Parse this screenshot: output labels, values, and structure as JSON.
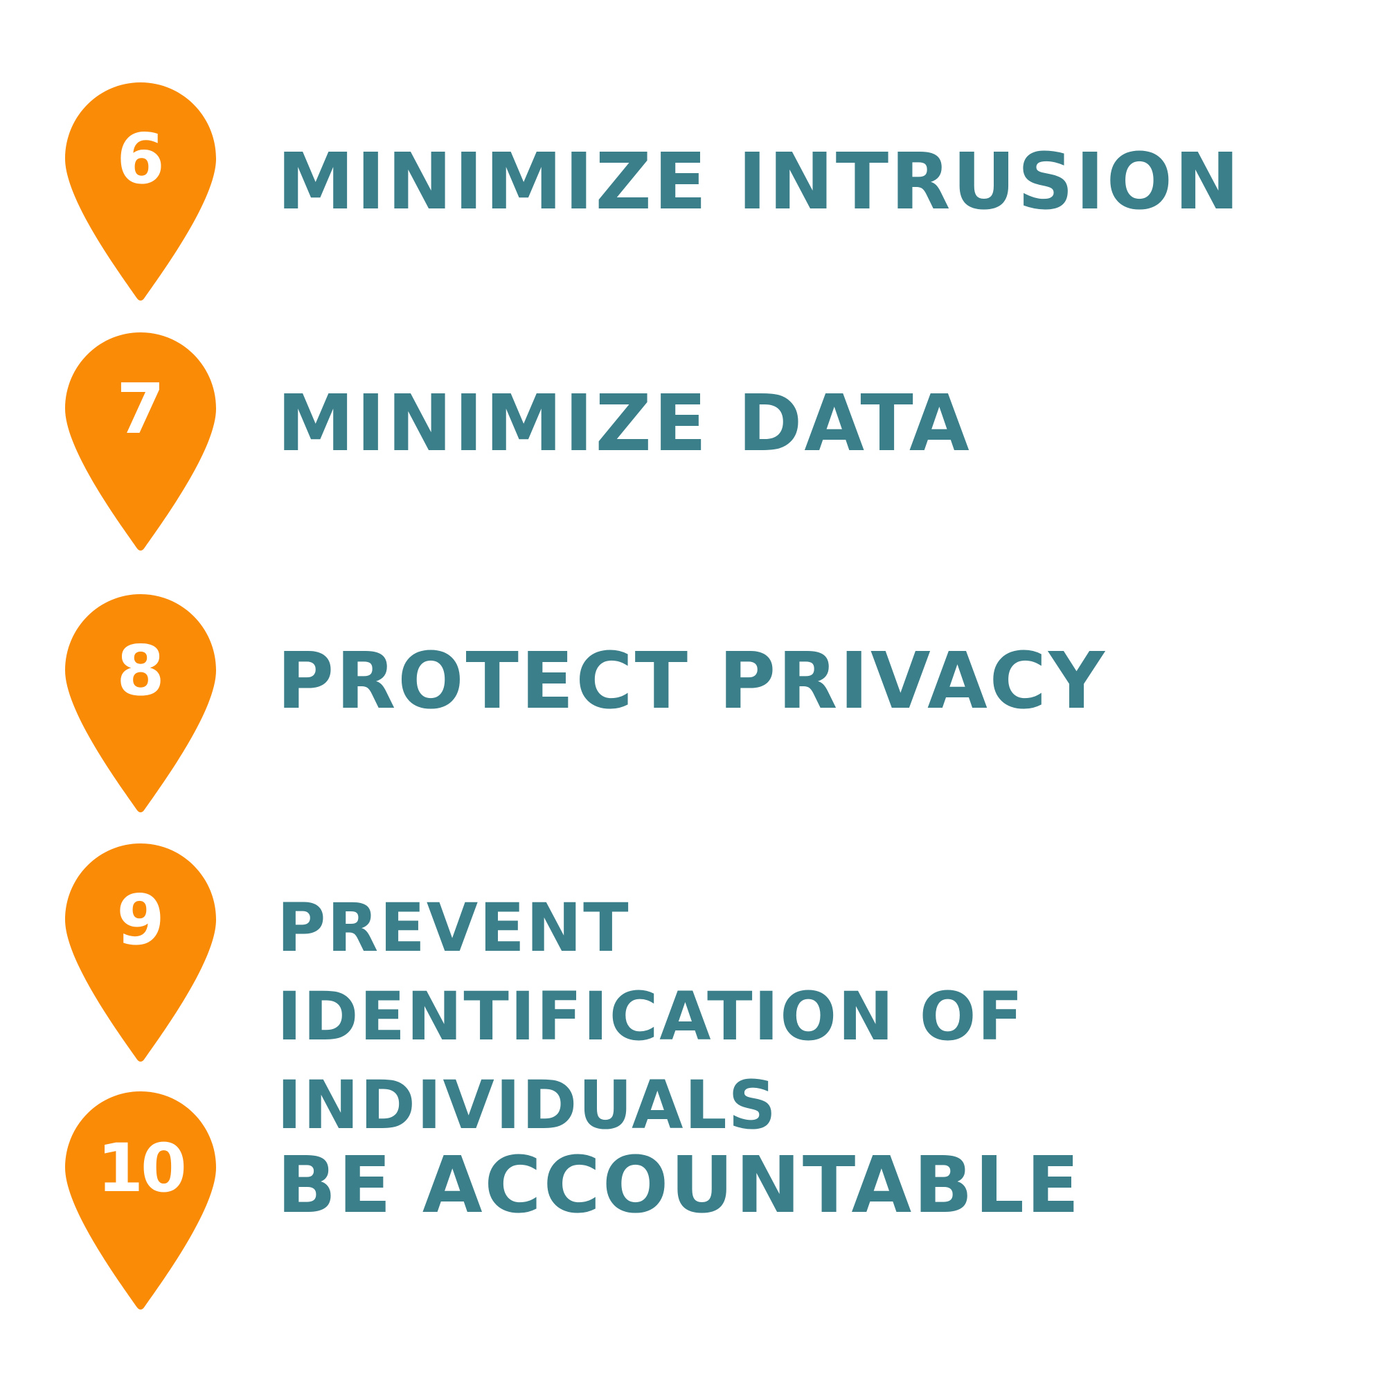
{
  "colors": {
    "pin": "#fa8b07",
    "pin_number": "#ffffff",
    "label": "#3a7f8a",
    "background": "#ffffff"
  },
  "icons": {
    "pin": "map-pin-icon"
  },
  "items": [
    {
      "number": "6",
      "label": "MINIMIZE INTRUSION"
    },
    {
      "number": "7",
      "label": "MINIMIZE DATA"
    },
    {
      "number": "8",
      "label": "PROTECT PRIVACY"
    },
    {
      "number": "9",
      "label": "PREVENT IDENTIFICATION OF INDIVIDUALS"
    },
    {
      "number": "10",
      "label": "BE ACCOUNTABLE"
    }
  ]
}
